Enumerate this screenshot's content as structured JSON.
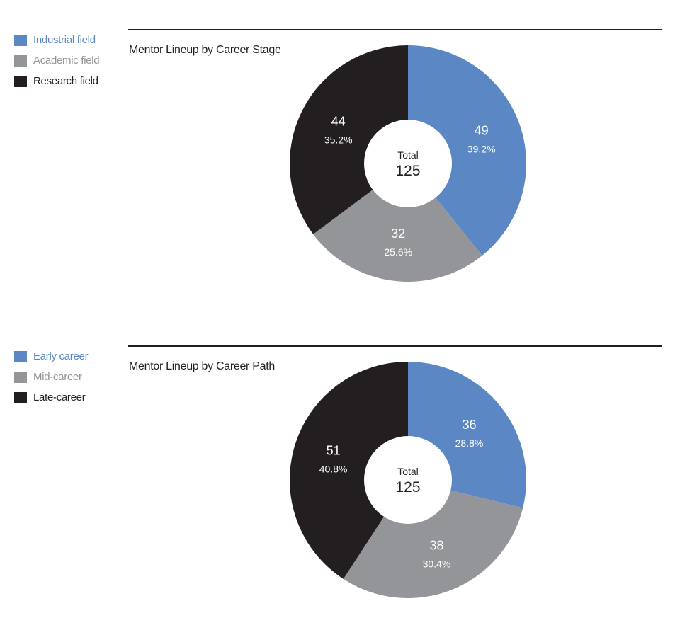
{
  "colors": {
    "blue": "#5b87c5",
    "gray": "#939598",
    "black": "#231f20"
  },
  "chart_data": [
    {
      "type": "pie",
      "title": "Mentor Lineup by Career Stage",
      "center_label": "Total",
      "total": 125,
      "legend_placement": "top-left",
      "categories": [
        "Industrial field",
        "Academic field",
        "Research field"
      ],
      "values": [
        49,
        32,
        44
      ],
      "percent_labels": [
        "39.2%",
        "25.6%",
        "35.2%"
      ],
      "colors": [
        "#5b87c5",
        "#939598",
        "#231f20"
      ]
    },
    {
      "type": "pie",
      "title": "Mentor Lineup by Career Path",
      "center_label": "Total",
      "total": 125,
      "legend_placement": "top-left",
      "categories": [
        "Early career",
        "Mid-career",
        "Late-career"
      ],
      "values": [
        36,
        38,
        51
      ],
      "percent_labels": [
        "28.8%",
        "30.4%",
        "40.8%"
      ],
      "colors": [
        "#5b87c5",
        "#939598",
        "#231f20"
      ]
    }
  ]
}
